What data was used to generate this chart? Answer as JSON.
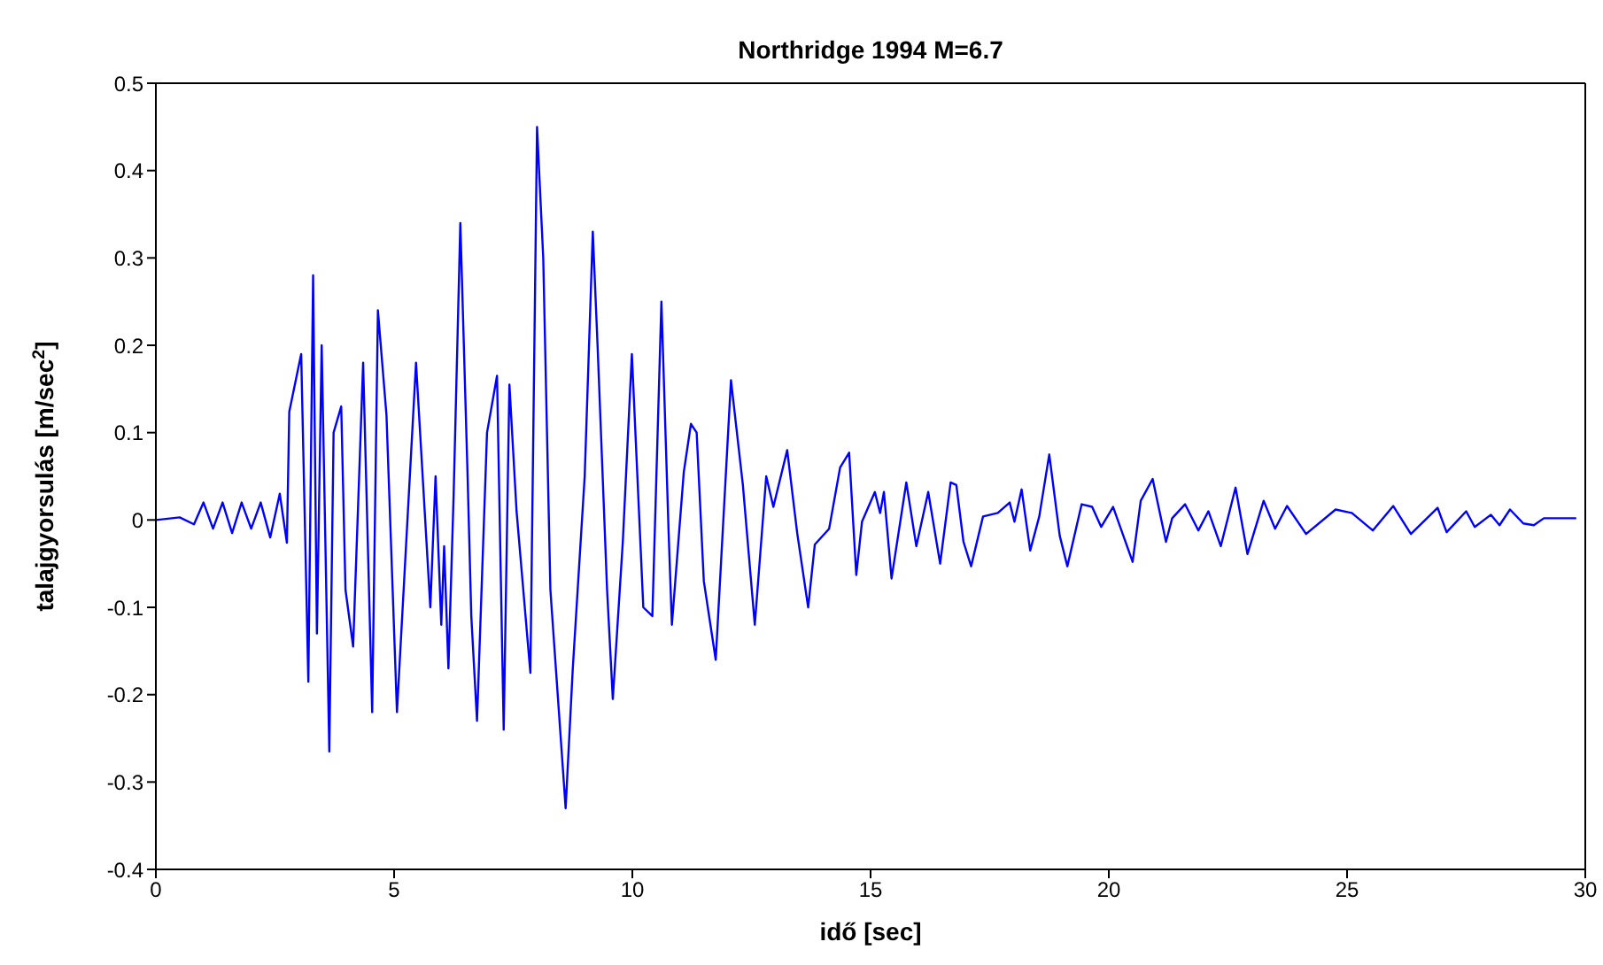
{
  "chart_data": {
    "type": "line",
    "title": "Northridge 1994 M=6.7",
    "xlabel": "idő [sec]",
    "ylabel": "talajgyorsulás [m/sec$^{2}$]",
    "xlim": [
      0,
      30
    ],
    "xticks": [
      0,
      5,
      10,
      15,
      20,
      25,
      30
    ],
    "ylim": [
      -0.4,
      0.5
    ],
    "yticks": [
      -0.4,
      -0.3,
      -0.2,
      -0.1,
      0,
      0.1,
      0.2,
      0.3,
      0.4,
      0.5
    ],
    "grid": false,
    "legend": false,
    "marker": "none",
    "line_style": "solid",
    "series": [
      {
        "color": "#0000ff",
        "x": [
          0,
          0.5,
          0.8,
          1.0,
          1.2,
          1.4,
          1.6,
          1.8,
          2.0,
          2.2,
          2.4,
          2.6,
          2.75,
          2.8,
          3.05,
          3.2,
          3.3,
          3.38,
          3.48,
          3.64,
          3.73,
          3.89,
          3.98,
          4.14,
          4.35,
          4.54,
          4.66,
          4.84,
          5.06,
          5.22,
          5.46,
          5.76,
          5.87,
          5.99,
          6.05,
          6.14,
          6.25,
          6.39,
          6.54,
          6.62,
          6.74,
          6.95,
          7.16,
          7.3,
          7.42,
          7.57,
          7.86,
          8.0,
          8.13,
          8.28,
          8.6,
          8.75,
          9.0,
          9.17,
          9.27,
          9.47,
          9.59,
          9.8,
          9.99,
          10.23,
          10.42,
          10.61,
          10.76,
          10.83,
          11.08,
          11.23,
          11.35,
          11.5,
          11.75,
          12.07,
          12.32,
          12.57,
          12.81,
          12.96,
          13.25,
          13.46,
          13.69,
          13.83,
          14.13,
          14.36,
          14.55,
          14.7,
          14.82,
          15.09,
          15.2,
          15.28,
          15.44,
          15.75,
          15.96,
          16.21,
          16.46,
          16.68,
          16.8,
          16.95,
          17.11,
          17.36,
          17.67,
          17.92,
          18.02,
          18.17,
          18.35,
          18.54,
          18.75,
          18.97,
          19.13,
          19.43,
          19.65,
          19.84,
          20.09,
          20.5,
          20.67,
          20.92,
          21.2,
          21.33,
          21.6,
          21.88,
          22.09,
          22.35,
          22.66,
          22.91,
          23.25,
          23.49,
          23.74,
          24.14,
          24.76,
          25.1,
          25.54,
          25.97,
          26.34,
          26.9,
          27.09,
          27.5,
          27.68,
          28.02,
          28.2,
          28.42,
          28.7,
          28.92,
          29.13,
          29.81
        ],
        "values": [
          0,
          0.003,
          -0.005,
          0.02,
          -0.01,
          0.02,
          -0.015,
          0.02,
          -0.01,
          0.02,
          -0.02,
          0.03,
          -0.026,
          0.124,
          0.19,
          -0.185,
          0.28,
          -0.13,
          0.2,
          -0.265,
          0.1,
          0.13,
          -0.08,
          -0.145,
          0.18,
          -0.22,
          0.24,
          0.12,
          -0.22,
          -0.06,
          0.18,
          -0.1,
          0.05,
          -0.12,
          -0.03,
          -0.17,
          0.03,
          0.34,
          0.055,
          -0.11,
          -0.23,
          0.1,
          0.165,
          -0.24,
          0.155,
          0.01,
          -0.175,
          0.45,
          0.3,
          -0.08,
          -0.33,
          -0.17,
          0.05,
          0.33,
          0.2,
          -0.08,
          -0.205,
          -0.025,
          0.19,
          -0.1,
          -0.11,
          0.25,
          -0.012,
          -0.12,
          0.055,
          0.11,
          0.1,
          -0.07,
          -0.16,
          0.16,
          0.04,
          -0.12,
          0.05,
          0.015,
          0.08,
          -0.015,
          -0.1,
          -0.028,
          -0.01,
          0.06,
          0.077,
          -0.063,
          -0.002,
          0.032,
          0.008,
          0.032,
          -0.067,
          0.043,
          -0.03,
          0.032,
          -0.05,
          0.043,
          0.04,
          -0.025,
          -0.053,
          0.004,
          0.008,
          0.02,
          -0.002,
          0.035,
          -0.035,
          0.004,
          0.075,
          -0.018,
          -0.053,
          0.018,
          0.015,
          -0.008,
          0.015,
          -0.048,
          0.022,
          0.047,
          -0.025,
          0.002,
          0.018,
          -0.012,
          0.01,
          -0.03,
          0.037,
          -0.039,
          0.022,
          -0.01,
          0.016,
          -0.016,
          0.012,
          0.008,
          -0.012,
          0.016,
          -0.016,
          0.014,
          -0.014,
          0.01,
          -0.008,
          0.006,
          -0.006,
          0.012,
          -0.004,
          -0.006,
          0.002,
          0.002
        ]
      }
    ]
  }
}
